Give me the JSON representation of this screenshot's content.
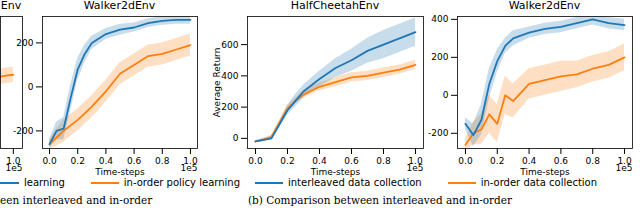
{
  "chart_data": [
    {
      "type": "line",
      "title": "Env",
      "x": [
        0.93,
        0.96,
        1.0
      ],
      "xlim": [
        0.93,
        1.05
      ],
      "ylim": [
        -280,
        400
      ],
      "xticks": [
        {
          "value": 1,
          "label": "1.0"
        }
      ],
      "x_multiplier": "1e5",
      "tick_labels": "x",
      "series": [
        {
          "name": "in-order policy learning",
          "color": "#ff7f0e",
          "values": [
            90,
            95,
            100
          ],
          "lower": [
            50,
            55,
            60
          ],
          "upper": [
            130,
            135,
            140
          ]
        }
      ]
    },
    {
      "type": "line",
      "title": "Walker2dEnv",
      "xlabel": "Time-steps",
      "x_multiplier": "1e5",
      "caption": "een interleaved and in-order",
      "legend": "bottom",
      "x": [
        0,
        0.05,
        0.1,
        0.15,
        0.2,
        0.25,
        0.3,
        0.4,
        0.5,
        0.6,
        0.7,
        0.8,
        0.9,
        1.0
      ],
      "xlim": [
        -0.05,
        1.05
      ],
      "ylim": [
        -280,
        320
      ],
      "xticks": [
        {
          "value": 0,
          "label": "0.0"
        },
        {
          "value": 0.2,
          "label": "0.2"
        },
        {
          "value": 0.4,
          "label": "0.4"
        },
        {
          "value": 0.6,
          "label": "0.6"
        },
        {
          "value": 0.8,
          "label": "0.8"
        },
        {
          "value": 1,
          "label": "1.0"
        }
      ],
      "yticks": [
        -200,
        0,
        200
      ],
      "series": [
        {
          "name": "learning",
          "color": "#1f77b4",
          "values": [
            -260,
            -200,
            -190,
            -50,
            80,
            150,
            200,
            240,
            260,
            270,
            290,
            300,
            305,
            305
          ],
          "lower": [
            -280,
            -240,
            -240,
            -110,
            30,
            110,
            170,
            215,
            235,
            250,
            270,
            280,
            285,
            285
          ],
          "upper": [
            -240,
            -160,
            -140,
            10,
            130,
            190,
            230,
            265,
            285,
            290,
            310,
            320,
            325,
            325
          ]
        },
        {
          "name": "in-order policy learning",
          "color": "#ff7f0e",
          "values": [
            -260,
            -230,
            -200,
            -175,
            -150,
            -120,
            -90,
            -20,
            60,
            100,
            140,
            150,
            170,
            190
          ],
          "lower": [
            -280,
            -270,
            -250,
            -225,
            -200,
            -170,
            -140,
            -70,
            10,
            50,
            90,
            100,
            120,
            140
          ],
          "upper": [
            -240,
            -190,
            -150,
            -125,
            -100,
            -70,
            -40,
            30,
            110,
            150,
            190,
            200,
            220,
            240
          ]
        }
      ]
    },
    {
      "type": "line",
      "title": "HalfCheetahEnv",
      "xlabel": "Time-steps",
      "ylabel": "Average Return",
      "x_multiplier": "1e5",
      "caption": "(b) Comparison between interleaved and in-order",
      "legend": "bottom",
      "x": [
        0,
        0.05,
        0.1,
        0.15,
        0.2,
        0.25,
        0.3,
        0.4,
        0.5,
        0.6,
        0.7,
        0.8,
        0.9,
        1.0
      ],
      "xlim": [
        -0.05,
        1.05
      ],
      "ylim": [
        -65,
        780
      ],
      "xticks": [
        {
          "value": 0,
          "label": "0.0"
        },
        {
          "value": 0.2,
          "label": "0.2"
        },
        {
          "value": 0.4,
          "label": "0.4"
        },
        {
          "value": 0.6,
          "label": "0.6"
        },
        {
          "value": 0.8,
          "label": "0.8"
        },
        {
          "value": 1,
          "label": "1.0"
        }
      ],
      "yticks": [
        0,
        200,
        400,
        600
      ],
      "series": [
        {
          "name": "interleaved data collection",
          "color": "#1f77b4",
          "values": [
            -20,
            -10,
            0,
            90,
            180,
            240,
            300,
            380,
            450,
            500,
            560,
            600,
            640,
            680
          ],
          "lower": [
            -25,
            -20,
            -10,
            70,
            150,
            200,
            260,
            330,
            390,
            430,
            480,
            510,
            550,
            590
          ],
          "upper": [
            -15,
            0,
            10,
            110,
            210,
            280,
            340,
            430,
            510,
            570,
            640,
            690,
            730,
            770
          ]
        },
        {
          "name": "in-order data collection",
          "color": "#ff7f0e",
          "values": [
            -20,
            -10,
            10,
            100,
            190,
            240,
            280,
            330,
            360,
            390,
            400,
            420,
            440,
            470
          ],
          "lower": [
            -25,
            -20,
            0,
            85,
            170,
            220,
            255,
            305,
            330,
            360,
            370,
            390,
            410,
            440
          ],
          "upper": [
            -15,
            0,
            20,
            115,
            210,
            260,
            305,
            355,
            390,
            420,
            430,
            450,
            470,
            500
          ]
        }
      ]
    },
    {
      "type": "line",
      "title": "Walker2dEnv",
      "xlabel": "Time-steps",
      "x_multiplier": "1e5",
      "x": [
        0,
        0.05,
        0.1,
        0.15,
        0.2,
        0.25,
        0.3,
        0.4,
        0.5,
        0.6,
        0.7,
        0.8,
        0.9,
        1.0
      ],
      "xlim": [
        -0.05,
        1.05
      ],
      "ylim": [
        -280,
        415
      ],
      "xticks": [
        {
          "value": 0,
          "label": "0.0"
        },
        {
          "value": 0.2,
          "label": "0.2"
        },
        {
          "value": 0.4,
          "label": "0.4"
        },
        {
          "value": 0.6,
          "label": "0.6"
        },
        {
          "value": 0.8,
          "label": "0.8"
        },
        {
          "value": 1,
          "label": "1.0"
        }
      ],
      "yticks": [
        -200,
        0,
        200,
        400
      ],
      "series": [
        {
          "name": "interleaved data collection",
          "color": "#1f77b4",
          "values": [
            -150,
            -210,
            -130,
            60,
            180,
            260,
            300,
            330,
            350,
            360,
            380,
            400,
            380,
            370
          ],
          "lower": [
            -180,
            -270,
            -210,
            -20,
            120,
            220,
            260,
            300,
            320,
            330,
            350,
            370,
            350,
            340
          ],
          "upper": [
            -120,
            -150,
            -50,
            140,
            240,
            300,
            340,
            360,
            380,
            390,
            410,
            430,
            410,
            400
          ]
        },
        {
          "name": "in-order data collection",
          "color": "#ff7f0e",
          "values": [
            -260,
            -200,
            -180,
            -100,
            -150,
            0,
            -30,
            60,
            80,
            100,
            110,
            140,
            160,
            200
          ],
          "lower": [
            -290,
            -260,
            -260,
            -200,
            -250,
            -100,
            -120,
            -20,
            0,
            20,
            40,
            70,
            90,
            130
          ],
          "upper": [
            -230,
            -140,
            -100,
            0,
            -50,
            100,
            60,
            140,
            160,
            180,
            180,
            210,
            230,
            270
          ]
        }
      ]
    }
  ]
}
